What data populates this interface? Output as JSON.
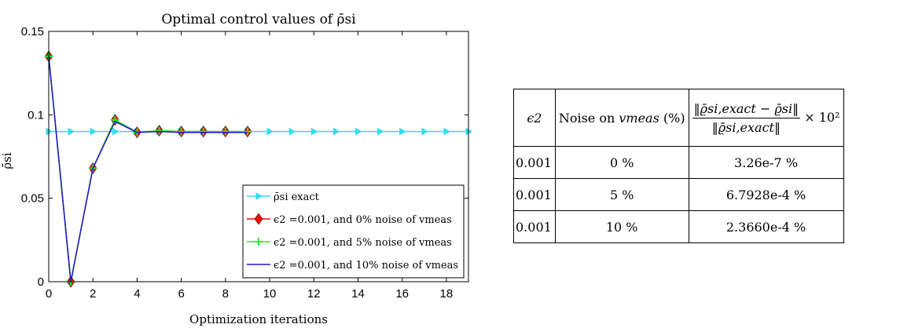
{
  "chart_data": {
    "type": "line",
    "title": "Optimal control values of ρ̄si",
    "xlabel": "Optimization iterations",
    "ylabel": "ρ̄si",
    "xlim": [
      0,
      19
    ],
    "ylim": [
      0,
      0.15
    ],
    "xticks": [
      "0",
      "2",
      "4",
      "6",
      "8",
      "10",
      "12",
      "14",
      "16",
      "18"
    ],
    "yticks": [
      "0",
      "0.05",
      "0.1",
      "0.15"
    ],
    "grid": false,
    "legend_position": "bottom-right",
    "series": [
      {
        "name": "ρ̄si exact",
        "color": "#33ddee",
        "marker": "triangle-right",
        "x": [
          0,
          1,
          2,
          3,
          4,
          5,
          6,
          7,
          8,
          9,
          10,
          11,
          12,
          13,
          14,
          15,
          16,
          17,
          18,
          19
        ],
        "y": [
          0.09,
          0.09,
          0.09,
          0.09,
          0.09,
          0.09,
          0.09,
          0.09,
          0.09,
          0.09,
          0.09,
          0.09,
          0.09,
          0.09,
          0.09,
          0.09,
          0.09,
          0.09,
          0.09,
          0.09
        ]
      },
      {
        "name": "ϵ2 =0.001, and 0% noise of vmeas",
        "color": "#ff0000",
        "marker": "diamond",
        "x": [
          0,
          1,
          2,
          3,
          4,
          5,
          6,
          7,
          8,
          9
        ],
        "y": [
          0.135,
          0.0,
          0.068,
          0.097,
          0.0895,
          0.0905,
          0.09,
          0.09,
          0.09,
          0.09
        ]
      },
      {
        "name": "ϵ2 =0.001, and 5% noise of vmeas",
        "color": "#22ee22",
        "marker": "plus",
        "x": [
          0,
          1,
          2,
          3,
          4,
          5,
          6,
          7,
          8,
          9
        ],
        "y": [
          0.135,
          0.0,
          0.068,
          0.097,
          0.0895,
          0.0905,
          0.09,
          0.09,
          0.09,
          0.09
        ]
      },
      {
        "name": "ϵ2 =0.001, and 10% noise of vmeas",
        "color": "#1a1acc",
        "marker": "none",
        "x": [
          0,
          1,
          2,
          3,
          4,
          5,
          6,
          7,
          8,
          9
        ],
        "y": [
          0.135,
          0.0,
          0.068,
          0.096,
          0.0895,
          0.09,
          0.0895,
          0.0895,
          0.0895,
          0.0895
        ]
      }
    ]
  },
  "table": {
    "header": {
      "c1": "ϵ2",
      "c2_prefix": "Noise on ",
      "c2_var": "vmeas",
      "c2_suffix": " (%)",
      "c3_num": "‖ϱ̄si,exact − ϱ̄si‖",
      "c3_den": "‖ϱ̄si,exact‖",
      "c3_factor": "× 10²"
    },
    "rows": [
      {
        "eps": "0.001",
        "noise": "0 %",
        "error": "3.26e-7 %"
      },
      {
        "eps": "0.001",
        "noise": "5 %",
        "error": "6.7928e-4 %"
      },
      {
        "eps": "0.001",
        "noise": "10 %",
        "error": "2.3660e-4 %"
      }
    ]
  }
}
